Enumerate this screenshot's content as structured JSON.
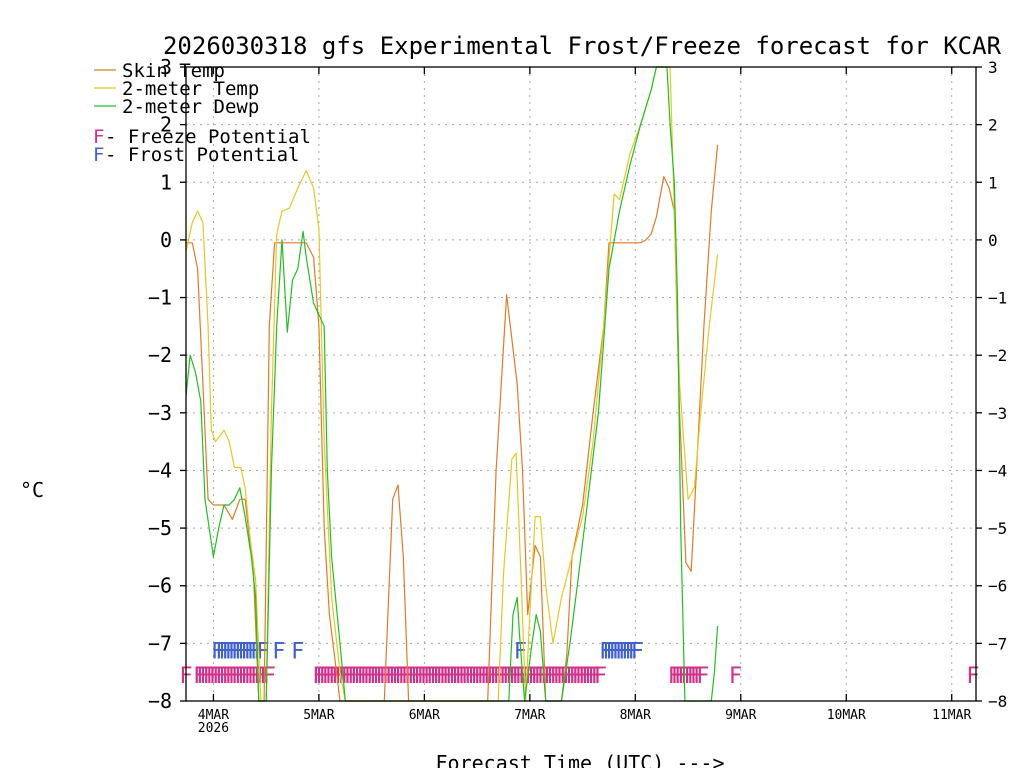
{
  "chart_data": {
    "type": "line",
    "title": "2026030318 gfs Experimental Frost/Freeze forecast for KCAR",
    "xlabel": "Forecast Time (UTC) --->",
    "ylabel": "°C",
    "ylim": [
      -8,
      3
    ],
    "xlim": [
      -0.26,
      7.23
    ],
    "y_ticks": [
      "−8",
      "−7",
      "−6",
      "−5",
      "−4",
      "−3",
      "−2",
      "−1",
      "0",
      "1",
      "2",
      "3"
    ],
    "x_ticks": [
      {
        "day": 0,
        "label": "4MAR",
        "sub": "2026"
      },
      {
        "day": 1,
        "label": "5MAR",
        "sub": ""
      },
      {
        "day": 2,
        "label": "6MAR",
        "sub": ""
      },
      {
        "day": 3,
        "label": "7MAR",
        "sub": ""
      },
      {
        "day": 4,
        "label": "8MAR",
        "sub": ""
      },
      {
        "day": 5,
        "label": "9MAR",
        "sub": ""
      },
      {
        "day": 6,
        "label": "10MAR",
        "sub": ""
      },
      {
        "day": 7,
        "label": "11MAR",
        "sub": ""
      }
    ],
    "grid": true,
    "legend_position": "top-left",
    "legend": [
      {
        "label": "Skin Temp",
        "color": "#e07b28"
      },
      {
        "label": "2-meter Temp",
        "color": "#e6c81e"
      },
      {
        "label": "2-meter Dewp",
        "color": "#20c020"
      }
    ],
    "marker_legend": [
      {
        "mark": "F",
        "label": " - Freeze Potential",
        "color": "#d0308a"
      },
      {
        "mark": "F",
        "label": " - Frost Potential",
        "color": "#4060d0"
      }
    ],
    "series": [
      {
        "name": "Skin Temp",
        "color": "#e07b28",
        "points": [
          [
            -0.26,
            -0.05
          ],
          [
            -0.2,
            -0.05
          ],
          [
            -0.15,
            -0.5
          ],
          [
            -0.1,
            -2.5
          ],
          [
            -0.05,
            -4.5
          ],
          [
            0.0,
            -4.6
          ],
          [
            0.1,
            -4.6
          ],
          [
            0.18,
            -4.85
          ],
          [
            0.25,
            -4.5
          ],
          [
            0.3,
            -4.5
          ],
          [
            0.38,
            -5.8
          ],
          [
            0.43,
            -8.0
          ],
          [
            0.48,
            -8.0
          ],
          [
            0.53,
            -1.5
          ],
          [
            0.58,
            -0.05
          ],
          [
            0.88,
            -0.05
          ],
          [
            0.95,
            -0.3
          ],
          [
            1.0,
            -1.5
          ],
          [
            1.05,
            -5.0
          ],
          [
            1.1,
            -6.5
          ],
          [
            1.2,
            -8.0
          ],
          [
            1.62,
            -8.0
          ],
          [
            1.7,
            -4.5
          ],
          [
            1.75,
            -4.25
          ],
          [
            1.8,
            -5.5
          ],
          [
            1.85,
            -8.0
          ],
          [
            2.6,
            -8.0
          ],
          [
            2.68,
            -4.0
          ],
          [
            2.78,
            -0.95
          ],
          [
            2.88,
            -2.5
          ],
          [
            2.93,
            -4.0
          ],
          [
            2.98,
            -6.5
          ],
          [
            3.05,
            -5.3
          ],
          [
            3.1,
            -5.5
          ],
          [
            3.15,
            -8.0
          ],
          [
            3.3,
            -8.0
          ],
          [
            3.35,
            -7.2
          ],
          [
            3.4,
            -5.5
          ],
          [
            3.5,
            -4.6
          ],
          [
            3.6,
            -3.0
          ],
          [
            3.7,
            -1.5
          ],
          [
            3.75,
            -0.05
          ],
          [
            4.05,
            -0.05
          ],
          [
            4.1,
            0.0
          ],
          [
            4.15,
            0.1
          ],
          [
            4.2,
            0.4
          ],
          [
            4.27,
            1.1
          ],
          [
            4.32,
            0.9
          ],
          [
            4.37,
            0.5
          ],
          [
            4.42,
            -3.0
          ],
          [
            4.48,
            -5.6
          ],
          [
            4.53,
            -5.75
          ],
          [
            4.58,
            -4.0
          ],
          [
            4.65,
            -1.5
          ],
          [
            4.72,
            0.5
          ],
          [
            4.78,
            1.65
          ]
        ]
      },
      {
        "name": "2-meter Temp",
        "color": "#e6c81e",
        "points": [
          [
            -0.26,
            -0.2
          ],
          [
            -0.2,
            0.3
          ],
          [
            -0.15,
            0.5
          ],
          [
            -0.1,
            0.3
          ],
          [
            -0.05,
            -1.5
          ],
          [
            -0.02,
            -3.3
          ],
          [
            0.02,
            -3.5
          ],
          [
            0.1,
            -3.3
          ],
          [
            0.15,
            -3.5
          ],
          [
            0.2,
            -3.95
          ],
          [
            0.26,
            -3.95
          ],
          [
            0.3,
            -4.3
          ],
          [
            0.35,
            -5.2
          ],
          [
            0.4,
            -5.9
          ],
          [
            0.45,
            -8.0
          ],
          [
            0.5,
            -8.0
          ],
          [
            0.55,
            -3.0
          ],
          [
            0.6,
            0.1
          ],
          [
            0.65,
            0.5
          ],
          [
            0.72,
            0.55
          ],
          [
            0.8,
            0.9
          ],
          [
            0.88,
            1.2
          ],
          [
            0.95,
            0.9
          ],
          [
            1.0,
            0.2
          ],
          [
            1.05,
            -3.5
          ],
          [
            1.12,
            -6.2
          ],
          [
            1.2,
            -7.5
          ],
          [
            1.25,
            -8.0
          ],
          [
            2.7,
            -8.0
          ],
          [
            2.75,
            -5.8
          ],
          [
            2.83,
            -3.8
          ],
          [
            2.87,
            -3.7
          ],
          [
            2.92,
            -6.0
          ],
          [
            2.96,
            -8.0
          ],
          [
            3.0,
            -6.5
          ],
          [
            3.05,
            -4.8
          ],
          [
            3.1,
            -4.8
          ],
          [
            3.15,
            -6.0
          ],
          [
            3.22,
            -7.0
          ],
          [
            3.3,
            -6.2
          ],
          [
            3.4,
            -5.5
          ],
          [
            3.5,
            -4.8
          ],
          [
            3.6,
            -3.5
          ],
          [
            3.7,
            -1.5
          ],
          [
            3.8,
            0.8
          ],
          [
            3.85,
            0.7
          ],
          [
            3.95,
            1.5
          ],
          [
            4.05,
            2.0
          ],
          [
            4.15,
            2.6
          ],
          [
            4.2,
            3.0
          ],
          [
            4.33,
            3.0
          ],
          [
            4.37,
            0.5
          ],
          [
            4.42,
            -2.5
          ],
          [
            4.5,
            -4.5
          ],
          [
            4.56,
            -4.3
          ],
          [
            4.62,
            -3.0
          ],
          [
            4.7,
            -1.5
          ],
          [
            4.78,
            -0.25
          ]
        ]
      },
      {
        "name": "2-meter Dewp",
        "color": "#20c020",
        "points": [
          [
            -0.26,
            -2.7
          ],
          [
            -0.22,
            -2.0
          ],
          [
            -0.17,
            -2.3
          ],
          [
            -0.12,
            -2.8
          ],
          [
            -0.08,
            -4.5
          ],
          [
            -0.04,
            -5.0
          ],
          [
            0.0,
            -5.5
          ],
          [
            0.05,
            -5.0
          ],
          [
            0.1,
            -4.6
          ],
          [
            0.15,
            -4.6
          ],
          [
            0.2,
            -4.5
          ],
          [
            0.25,
            -4.3
          ],
          [
            0.3,
            -4.8
          ],
          [
            0.36,
            -5.5
          ],
          [
            0.4,
            -6.2
          ],
          [
            0.43,
            -8.0
          ],
          [
            0.5,
            -8.0
          ],
          [
            0.55,
            -4.0
          ],
          [
            0.6,
            -1.5
          ],
          [
            0.65,
            0.0
          ],
          [
            0.7,
            -1.6
          ],
          [
            0.75,
            -0.7
          ],
          [
            0.8,
            -0.5
          ],
          [
            0.85,
            0.15
          ],
          [
            0.88,
            -0.3
          ],
          [
            0.95,
            -1.1
          ],
          [
            1.0,
            -1.3
          ],
          [
            1.05,
            -1.5
          ],
          [
            1.08,
            -4.0
          ],
          [
            1.12,
            -5.5
          ],
          [
            1.2,
            -7.0
          ],
          [
            1.25,
            -8.0
          ],
          [
            2.8,
            -8.0
          ],
          [
            2.84,
            -6.5
          ],
          [
            2.88,
            -6.2
          ],
          [
            2.9,
            -6.8
          ],
          [
            2.95,
            -8.0
          ],
          [
            3.02,
            -7.0
          ],
          [
            3.06,
            -6.5
          ],
          [
            3.1,
            -6.8
          ],
          [
            3.15,
            -8.0
          ],
          [
            3.3,
            -8.0
          ],
          [
            3.38,
            -7.0
          ],
          [
            3.45,
            -6.0
          ],
          [
            3.55,
            -4.5
          ],
          [
            3.65,
            -3.0
          ],
          [
            3.75,
            -0.5
          ],
          [
            3.85,
            0.5
          ],
          [
            3.95,
            1.3
          ],
          [
            4.05,
            2.0
          ],
          [
            4.15,
            2.6
          ],
          [
            4.2,
            3.0
          ],
          [
            4.3,
            3.0
          ],
          [
            4.33,
            2.0
          ],
          [
            4.37,
            1.0
          ],
          [
            4.4,
            -1.0
          ],
          [
            4.43,
            -5.0
          ],
          [
            4.47,
            -8.0
          ],
          [
            4.72,
            -8.0
          ],
          [
            4.75,
            -7.5
          ],
          [
            4.78,
            -6.7
          ]
        ]
      }
    ],
    "freeze_marks": {
      "y": -7.55,
      "color": "#d0308a",
      "days": [
        -0.26,
        -0.13,
        -0.1,
        -0.07,
        -0.04,
        -0.01,
        0.02,
        0.05,
        0.08,
        0.11,
        0.14,
        0.17,
        0.2,
        0.23,
        0.26,
        0.29,
        0.32,
        0.35,
        0.38,
        0.41,
        0.44,
        0.47,
        0.5,
        0.53,
        1.0,
        1.03,
        1.06,
        1.09,
        1.12,
        1.15,
        1.18,
        1.21,
        1.24,
        1.27,
        1.3,
        1.33,
        1.36,
        1.39,
        1.42,
        1.45,
        1.48,
        1.51,
        1.54,
        1.57,
        1.6,
        1.63,
        1.66,
        1.69,
        1.72,
        1.75,
        1.78,
        1.81,
        1.84,
        1.87,
        1.9,
        1.93,
        1.96,
        1.99,
        2.02,
        2.05,
        2.08,
        2.11,
        2.14,
        2.17,
        2.2,
        2.23,
        2.26,
        2.29,
        2.32,
        2.35,
        2.38,
        2.41,
        2.44,
        2.47,
        2.5,
        2.53,
        2.56,
        2.59,
        2.62,
        2.65,
        2.68,
        2.71,
        2.74,
        2.77,
        2.8,
        2.83,
        2.86,
        2.89,
        2.92,
        2.95,
        2.98,
        3.01,
        3.04,
        3.07,
        3.1,
        3.13,
        3.16,
        3.19,
        3.22,
        3.25,
        3.28,
        3.31,
        3.34,
        3.37,
        3.4,
        3.43,
        3.46,
        3.49,
        3.52,
        3.55,
        3.58,
        3.61,
        3.64,
        3.67,
        4.37,
        4.4,
        4.43,
        4.46,
        4.49,
        4.52,
        4.55,
        4.58,
        4.61,
        4.64,
        4.95,
        7.23
      ]
    },
    "frost_marks": {
      "y": -7.12,
      "color": "#4060d0",
      "days": [
        0.04,
        0.08,
        0.11,
        0.14,
        0.17,
        0.2,
        0.23,
        0.26,
        0.29,
        0.32,
        0.35,
        0.38,
        0.41,
        0.44,
        0.47,
        0.62,
        0.8,
        2.91,
        3.72,
        3.75,
        3.78,
        3.81,
        3.84,
        3.87,
        3.9,
        3.93,
        3.96,
        3.99,
        4.02
      ]
    }
  }
}
